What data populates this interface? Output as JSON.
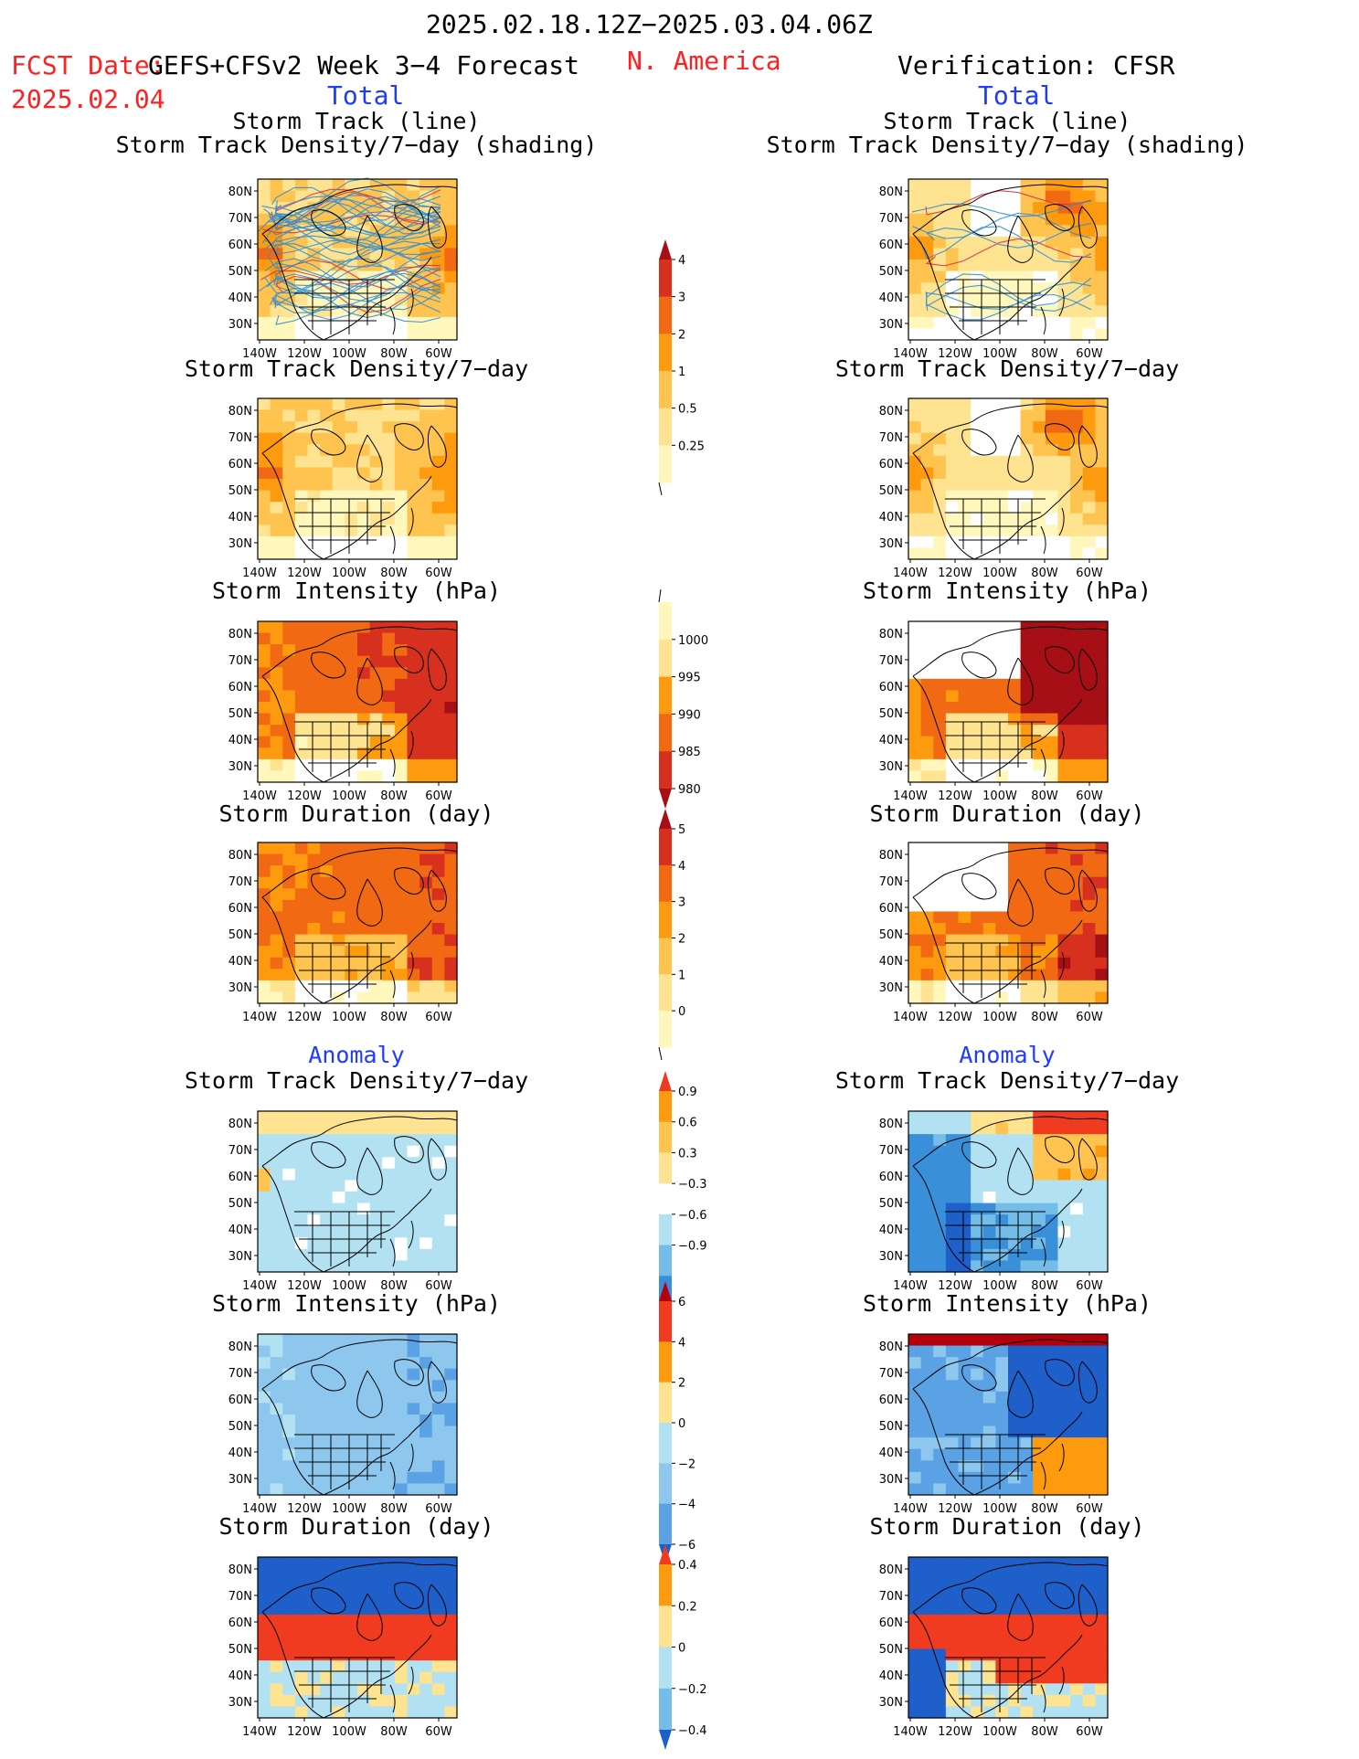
{
  "header": {
    "period": "2025.02.18.12Z−2025.03.04.06Z",
    "fcst_label": "FCST Date:",
    "model": "GEFS+CFSv2 Week 3−4 Forecast",
    "fcst_date": "2025.02.04",
    "region": "N. America",
    "verification": "Verification: CFSR",
    "total_left": "Total",
    "total_right": "Total"
  },
  "sections": {
    "anomaly_left": "Anomaly",
    "anomaly_right": "Anomaly"
  },
  "panel_titles": {
    "track_line": "Storm Track (line)",
    "track_shading": "Storm Track Density/7−day (shading)",
    "density": "Storm Track Density/7−day",
    "intensity": "Storm Intensity (hPa)",
    "duration": "Storm Duration (day)"
  },
  "axes": {
    "lat_labels": [
      "80N",
      "70N",
      "60N",
      "50N",
      "40N",
      "30N"
    ],
    "lon_labels": [
      "140W",
      "120W",
      "100W",
      "80W",
      "60W"
    ]
  },
  "colorbars": {
    "density_total": {
      "labels": [
        "4",
        "3",
        "2",
        "1",
        "0.5",
        "0.25"
      ],
      "colors": [
        "#a50f15",
        "#d7301f",
        "#f16913",
        "#fd9a0e",
        "#fec44f",
        "#fee391",
        "#fff7bc"
      ]
    },
    "intensity_total": {
      "labels": [
        "1000",
        "995",
        "990",
        "985",
        "980"
      ],
      "colors": [
        "#fff7bc",
        "#fee391",
        "#fd9a0e",
        "#f16913",
        "#d7301f",
        "#a50f15"
      ]
    },
    "duration_total": {
      "labels": [
        "5",
        "4",
        "3",
        "2",
        "1",
        "0"
      ],
      "colors": [
        "#a50f15",
        "#d7301f",
        "#f16913",
        "#fd9a0e",
        "#fec44f",
        "#fee391",
        "#fff7bc"
      ]
    },
    "density_anom": {
      "labels": [
        "0.9",
        "0.6",
        "0.3",
        "−0.3",
        "−0.6",
        "−0.9"
      ],
      "colors": [
        "#f03b20",
        "#fd9a0e",
        "#fec44f",
        "#fee391",
        "#ffffff",
        "#b2e2f2",
        "#74bde8",
        "#3a8fd9",
        "#1f5fc9"
      ]
    },
    "intensity_anom": {
      "labels": [
        "6",
        "4",
        "2",
        "0",
        "−2",
        "−4",
        "−6"
      ],
      "colors": [
        "#b3000c",
        "#f03b20",
        "#fd9a0e",
        "#fee391",
        "#b2e2f2",
        "#8ec7ee",
        "#5aa2e4",
        "#1f5fc9"
      ]
    },
    "duration_anom": {
      "labels": [
        "0.4",
        "0.2",
        "0",
        "−0.2",
        "−0.4"
      ],
      "colors": [
        "#f03b20",
        "#fd9a0e",
        "#fee391",
        "#b2e2f2",
        "#74bde8",
        "#1f5fc9"
      ]
    }
  }
}
